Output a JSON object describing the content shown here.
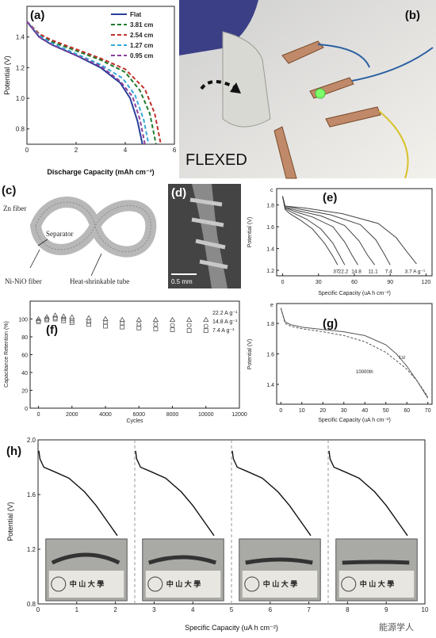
{
  "panels": {
    "a": {
      "tag": "(a)"
    },
    "b": {
      "tag": "(b)",
      "photo_text": "FLEXED"
    },
    "c": {
      "tag": "(c)",
      "labels": {
        "zn": "Zn fiber",
        "separator": "Separator",
        "ni": "Ni-NiO fiber",
        "tube": "Heat-shrinkable tube"
      }
    },
    "d": {
      "tag": "(d)",
      "scale": "0.5 mm"
    },
    "e": {
      "tag": "(e)",
      "corner": "c"
    },
    "f": {
      "tag": "(f)"
    },
    "g": {
      "tag": "(g)",
      "corner": "e",
      "label_1st": "1st",
      "label_10000": "10000th"
    },
    "h": {
      "tag": "(h)",
      "watermark": "能源学人",
      "photo_text": "中 山 大 學"
    }
  },
  "chart_data": [
    {
      "id": "a",
      "type": "line",
      "xlabel": "Discharge Capacity (mAh cm⁻²)",
      "ylabel": "Potential (V)",
      "xlim": [
        0,
        6
      ],
      "ylim": [
        0.7,
        1.6
      ],
      "xticks": [
        "0",
        "2",
        "4",
        "6"
      ],
      "yticks": [
        "0.8",
        "1.0",
        "1.2",
        "1.4"
      ],
      "series": [
        {
          "name": "Flat",
          "color": "#2a3f9a",
          "dash": "",
          "x": [
            0,
            0.5,
            1.0,
            2.0,
            3.0,
            3.8,
            4.2,
            4.5,
            4.7
          ],
          "y": [
            1.5,
            1.4,
            1.35,
            1.28,
            1.2,
            1.1,
            1.0,
            0.85,
            0.7
          ]
        },
        {
          "name": "3.81 cm",
          "color": "#1f7a2e",
          "dash": "5,3",
          "x": [
            0,
            0.5,
            1.0,
            2.0,
            3.0,
            4.0,
            4.6,
            5.0,
            5.25
          ],
          "y": [
            1.5,
            1.42,
            1.37,
            1.31,
            1.25,
            1.17,
            1.05,
            0.9,
            0.7
          ]
        },
        {
          "name": "2.54 cm",
          "color": "#c0302a",
          "dash": "5,3",
          "x": [
            0,
            0.5,
            1.0,
            2.0,
            3.0,
            4.0,
            4.8,
            5.2,
            5.45
          ],
          "y": [
            1.5,
            1.42,
            1.38,
            1.32,
            1.26,
            1.19,
            1.06,
            0.9,
            0.7
          ]
        },
        {
          "name": "1.27 cm",
          "color": "#35a8d8",
          "dash": "5,3",
          "x": [
            0,
            0.5,
            1.0,
            2.0,
            3.0,
            3.9,
            4.4,
            4.75,
            4.95
          ],
          "y": [
            1.5,
            1.41,
            1.36,
            1.29,
            1.22,
            1.13,
            1.02,
            0.86,
            0.7
          ]
        },
        {
          "name": "0.95 cm",
          "color": "#8a3f9a",
          "dash": "5,3",
          "x": [
            0,
            0.5,
            1.0,
            2.0,
            3.0,
            3.8,
            4.3,
            4.6,
            4.8
          ],
          "y": [
            1.5,
            1.4,
            1.35,
            1.28,
            1.21,
            1.11,
            1.01,
            0.86,
            0.7
          ]
        }
      ]
    },
    {
      "id": "e",
      "type": "line",
      "xlabel": "Specific Capacity (uA h cm⁻²)",
      "ylabel": "Potential (V)",
      "xlim": [
        -5,
        125
      ],
      "ylim": [
        1.15,
        1.95
      ],
      "xticks": [
        "0",
        "30",
        "60",
        "90",
        "120"
      ],
      "yticks": [
        "1.2",
        "1.4",
        "1.6",
        "1.8"
      ],
      "end_labels": [
        "37",
        "22.2",
        "14.8",
        "11.1",
        "7.4",
        "3.7 A g⁻¹"
      ],
      "series": [
        {
          "x": [
            0,
            2,
            6,
            15,
            25,
            35,
            42,
            46
          ],
          "y": [
            1.88,
            1.76,
            1.72,
            1.66,
            1.58,
            1.45,
            1.33,
            1.25
          ]
        },
        {
          "x": [
            0,
            2,
            8,
            20,
            32,
            42,
            48,
            52
          ],
          "y": [
            1.88,
            1.77,
            1.73,
            1.67,
            1.58,
            1.45,
            1.33,
            1.25
          ]
        },
        {
          "x": [
            0,
            2,
            10,
            25,
            42,
            52,
            58,
            63
          ],
          "y": [
            1.88,
            1.78,
            1.74,
            1.69,
            1.6,
            1.46,
            1.34,
            1.25
          ]
        },
        {
          "x": [
            0,
            2,
            12,
            32,
            52,
            64,
            71,
            77
          ],
          "y": [
            1.88,
            1.78,
            1.75,
            1.7,
            1.61,
            1.47,
            1.34,
            1.25
          ]
        },
        {
          "x": [
            0,
            2,
            15,
            40,
            65,
            78,
            85,
            90
          ],
          "y": [
            1.88,
            1.79,
            1.76,
            1.71,
            1.62,
            1.48,
            1.35,
            1.25
          ]
        },
        {
          "x": [
            0,
            2,
            20,
            50,
            80,
            95,
            104,
            112
          ],
          "y": [
            1.88,
            1.79,
            1.77,
            1.72,
            1.63,
            1.5,
            1.37,
            1.26
          ]
        }
      ]
    },
    {
      "id": "f",
      "type": "scatter",
      "xlabel": "Cycles",
      "ylabel": "Capacitance Retention (%)",
      "xlim": [
        -500,
        12000
      ],
      "ylim": [
        0,
        120
      ],
      "xticks": [
        "0",
        "2000",
        "4000",
        "6000",
        "8000",
        "10000",
        "12000"
      ],
      "yticks": [
        "0",
        "20",
        "40",
        "60",
        "80",
        "100"
      ],
      "series": [
        {
          "name": "22.2 A g⁻¹",
          "marker": "triangle",
          "x": [
            0,
            500,
            1000,
            1500,
            2000,
            3000,
            4000,
            5000,
            6000,
            7000,
            8000,
            9000,
            10000
          ],
          "y": [
            100,
            102,
            104,
            103,
            102,
            101,
            100,
            99,
            99,
            99,
            99,
            99,
            99
          ]
        },
        {
          "name": "14.8 A g⁻¹",
          "marker": "circle",
          "x": [
            0,
            500,
            1000,
            1500,
            2000,
            3000,
            4000,
            5000,
            6000,
            7000,
            8000,
            9000,
            10000
          ],
          "y": [
            98,
            100,
            101,
            100,
            98,
            97,
            96,
            95,
            94,
            94,
            93,
            93,
            92
          ]
        },
        {
          "name": "7.4 A g⁻¹",
          "marker": "square",
          "x": [
            0,
            500,
            1000,
            1500,
            2000,
            3000,
            4000,
            5000,
            6000,
            7000,
            8000,
            9000,
            10000
          ],
          "y": [
            97,
            99,
            100,
            98,
            96,
            94,
            92,
            91,
            90,
            89,
            88,
            87,
            87
          ]
        }
      ]
    },
    {
      "id": "g",
      "type": "line",
      "xlabel": "Specific Capacity (uA h cm⁻²)",
      "ylabel": "Potential (V)",
      "xlim": [
        -2,
        72
      ],
      "ylim": [
        1.27,
        1.93
      ],
      "xticks": [
        "0",
        "10",
        "20",
        "30",
        "40",
        "50",
        "60",
        "70"
      ],
      "yticks": [
        "1.4",
        "1.6",
        "1.8"
      ],
      "series": [
        {
          "name": "1st",
          "dash": "",
          "x": [
            0,
            2,
            5,
            10,
            20,
            30,
            40,
            50,
            55,
            60,
            65,
            70
          ],
          "y": [
            1.9,
            1.81,
            1.79,
            1.775,
            1.76,
            1.745,
            1.72,
            1.66,
            1.6,
            1.52,
            1.42,
            1.31
          ]
        },
        {
          "name": "10000th",
          "dash": "3,2",
          "x": [
            0,
            2,
            5,
            10,
            20,
            30,
            40,
            50,
            60,
            65,
            70
          ],
          "y": [
            1.9,
            1.8,
            1.78,
            1.765,
            1.745,
            1.72,
            1.68,
            1.61,
            1.5,
            1.42,
            1.32
          ]
        }
      ]
    },
    {
      "id": "h",
      "type": "line",
      "xlabel": "Specific Capacity (uA h cm⁻²)",
      "ylabel": "Potential (V)",
      "xlim": [
        0,
        10
      ],
      "ylim": [
        0.8,
        2.0
      ],
      "xticks": [
        "0",
        "1",
        "2",
        "3",
        "4",
        "5",
        "6",
        "7",
        "8",
        "9",
        "10"
      ],
      "yticks": [
        "0.8",
        "1.2",
        "1.6",
        "2.0"
      ],
      "dividers": [
        2.5,
        5.0,
        7.5
      ],
      "series": [
        {
          "x": [
            0.02,
            0.05,
            0.15,
            0.4,
            0.8,
            1.2,
            1.5,
            1.8,
            2.05
          ],
          "y": [
            1.92,
            1.86,
            1.8,
            1.77,
            1.72,
            1.62,
            1.52,
            1.4,
            1.3
          ]
        },
        {
          "x": [
            2.52,
            2.55,
            2.65,
            2.9,
            3.3,
            3.7,
            4.0,
            4.3,
            4.55
          ],
          "y": [
            1.92,
            1.86,
            1.8,
            1.77,
            1.72,
            1.62,
            1.52,
            1.4,
            1.3
          ]
        },
        {
          "x": [
            5.02,
            5.05,
            5.15,
            5.4,
            5.8,
            6.2,
            6.5,
            6.8,
            7.05
          ],
          "y": [
            1.92,
            1.86,
            1.8,
            1.77,
            1.72,
            1.62,
            1.52,
            1.4,
            1.3
          ]
        },
        {
          "x": [
            7.52,
            7.55,
            7.65,
            7.9,
            8.3,
            8.7,
            9.0,
            9.3,
            9.55
          ],
          "y": [
            1.92,
            1.86,
            1.8,
            1.77,
            1.72,
            1.62,
            1.52,
            1.4,
            1.3
          ]
        }
      ]
    }
  ]
}
